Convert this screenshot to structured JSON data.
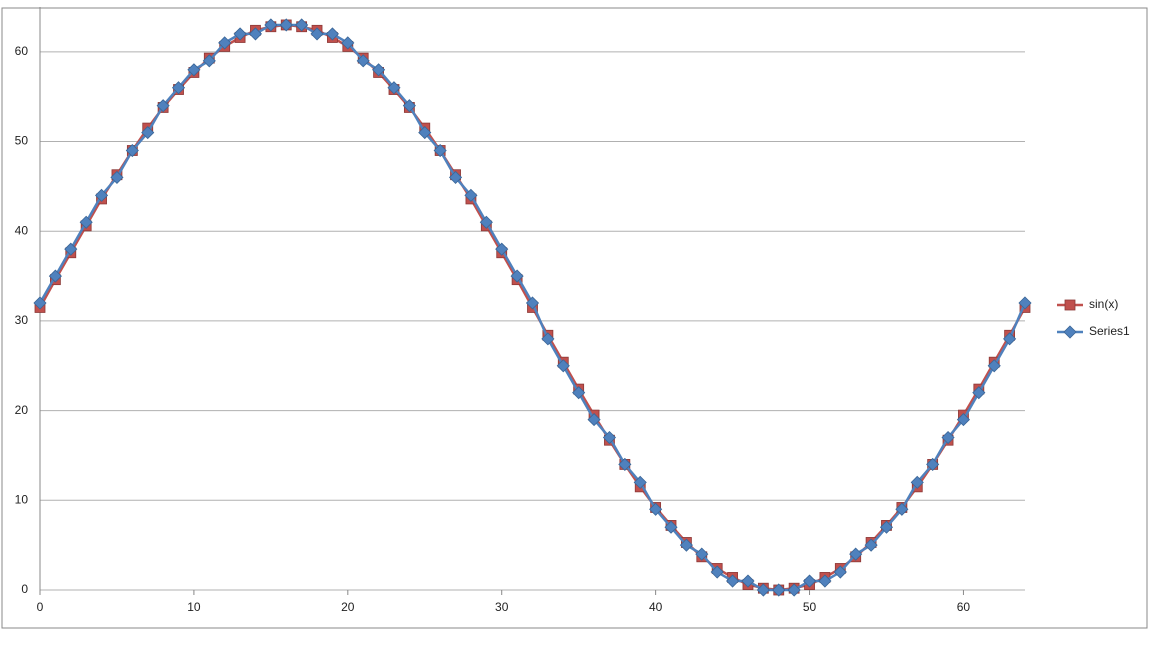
{
  "chart_data": {
    "type": "line",
    "x": [
      0,
      1,
      2,
      3,
      4,
      5,
      6,
      7,
      8,
      9,
      10,
      11,
      12,
      13,
      14,
      15,
      16,
      17,
      18,
      19,
      20,
      21,
      22,
      23,
      24,
      25,
      26,
      27,
      28,
      29,
      30,
      31,
      32,
      33,
      34,
      35,
      36,
      37,
      38,
      39,
      40,
      41,
      42,
      43,
      44,
      45,
      46,
      47,
      48,
      49,
      50,
      51,
      52,
      53,
      54,
      55,
      56,
      57,
      58,
      59,
      60,
      61,
      62,
      63,
      64
    ],
    "series": [
      {
        "name": "sin(x)",
        "color": "#c0504d",
        "marker": "square",
        "values": [
          31.5,
          34.6,
          37.6,
          40.6,
          43.6,
          46.3,
          49.0,
          51.5,
          53.8,
          55.8,
          57.7,
          59.3,
          60.6,
          61.6,
          62.4,
          62.8,
          63.0,
          62.8,
          62.4,
          61.6,
          60.6,
          59.3,
          57.7,
          55.8,
          53.8,
          51.5,
          49.0,
          46.3,
          43.6,
          40.6,
          37.6,
          34.6,
          31.5,
          28.4,
          25.4,
          22.4,
          19.5,
          16.7,
          14.0,
          11.5,
          9.2,
          7.2,
          5.3,
          3.7,
          2.4,
          1.4,
          0.6,
          0.2,
          0,
          0.2,
          0.6,
          1.4,
          2.4,
          3.7,
          5.3,
          7.2,
          9.2,
          11.5,
          14.0,
          16.7,
          19.5,
          22.4,
          25.4,
          28.4,
          31.5
        ]
      },
      {
        "name": "Series1",
        "color": "#4f81bd",
        "marker": "diamond",
        "values": [
          32,
          35,
          38,
          41,
          44,
          46,
          49,
          51,
          54,
          56,
          58,
          59,
          61,
          62,
          62,
          63,
          63,
          63,
          62,
          62,
          61,
          59,
          58,
          56,
          54,
          51,
          49,
          46,
          44,
          41,
          38,
          35,
          32,
          28,
          25,
          22,
          19,
          17,
          14,
          12,
          9,
          7,
          5,
          4,
          2,
          1,
          1,
          0,
          0,
          0,
          1,
          1,
          2,
          4,
          5,
          7,
          9,
          12,
          14,
          17,
          19,
          22,
          25,
          28,
          32
        ]
      }
    ],
    "xlim": [
      0,
      64
    ],
    "xticks": [
      0,
      10,
      20,
      30,
      40,
      50,
      60
    ],
    "ylim": [
      0,
      65
    ],
    "yticks": [
      0,
      10,
      20,
      30,
      40,
      50,
      60
    ],
    "grid": true,
    "legend": "right"
  }
}
